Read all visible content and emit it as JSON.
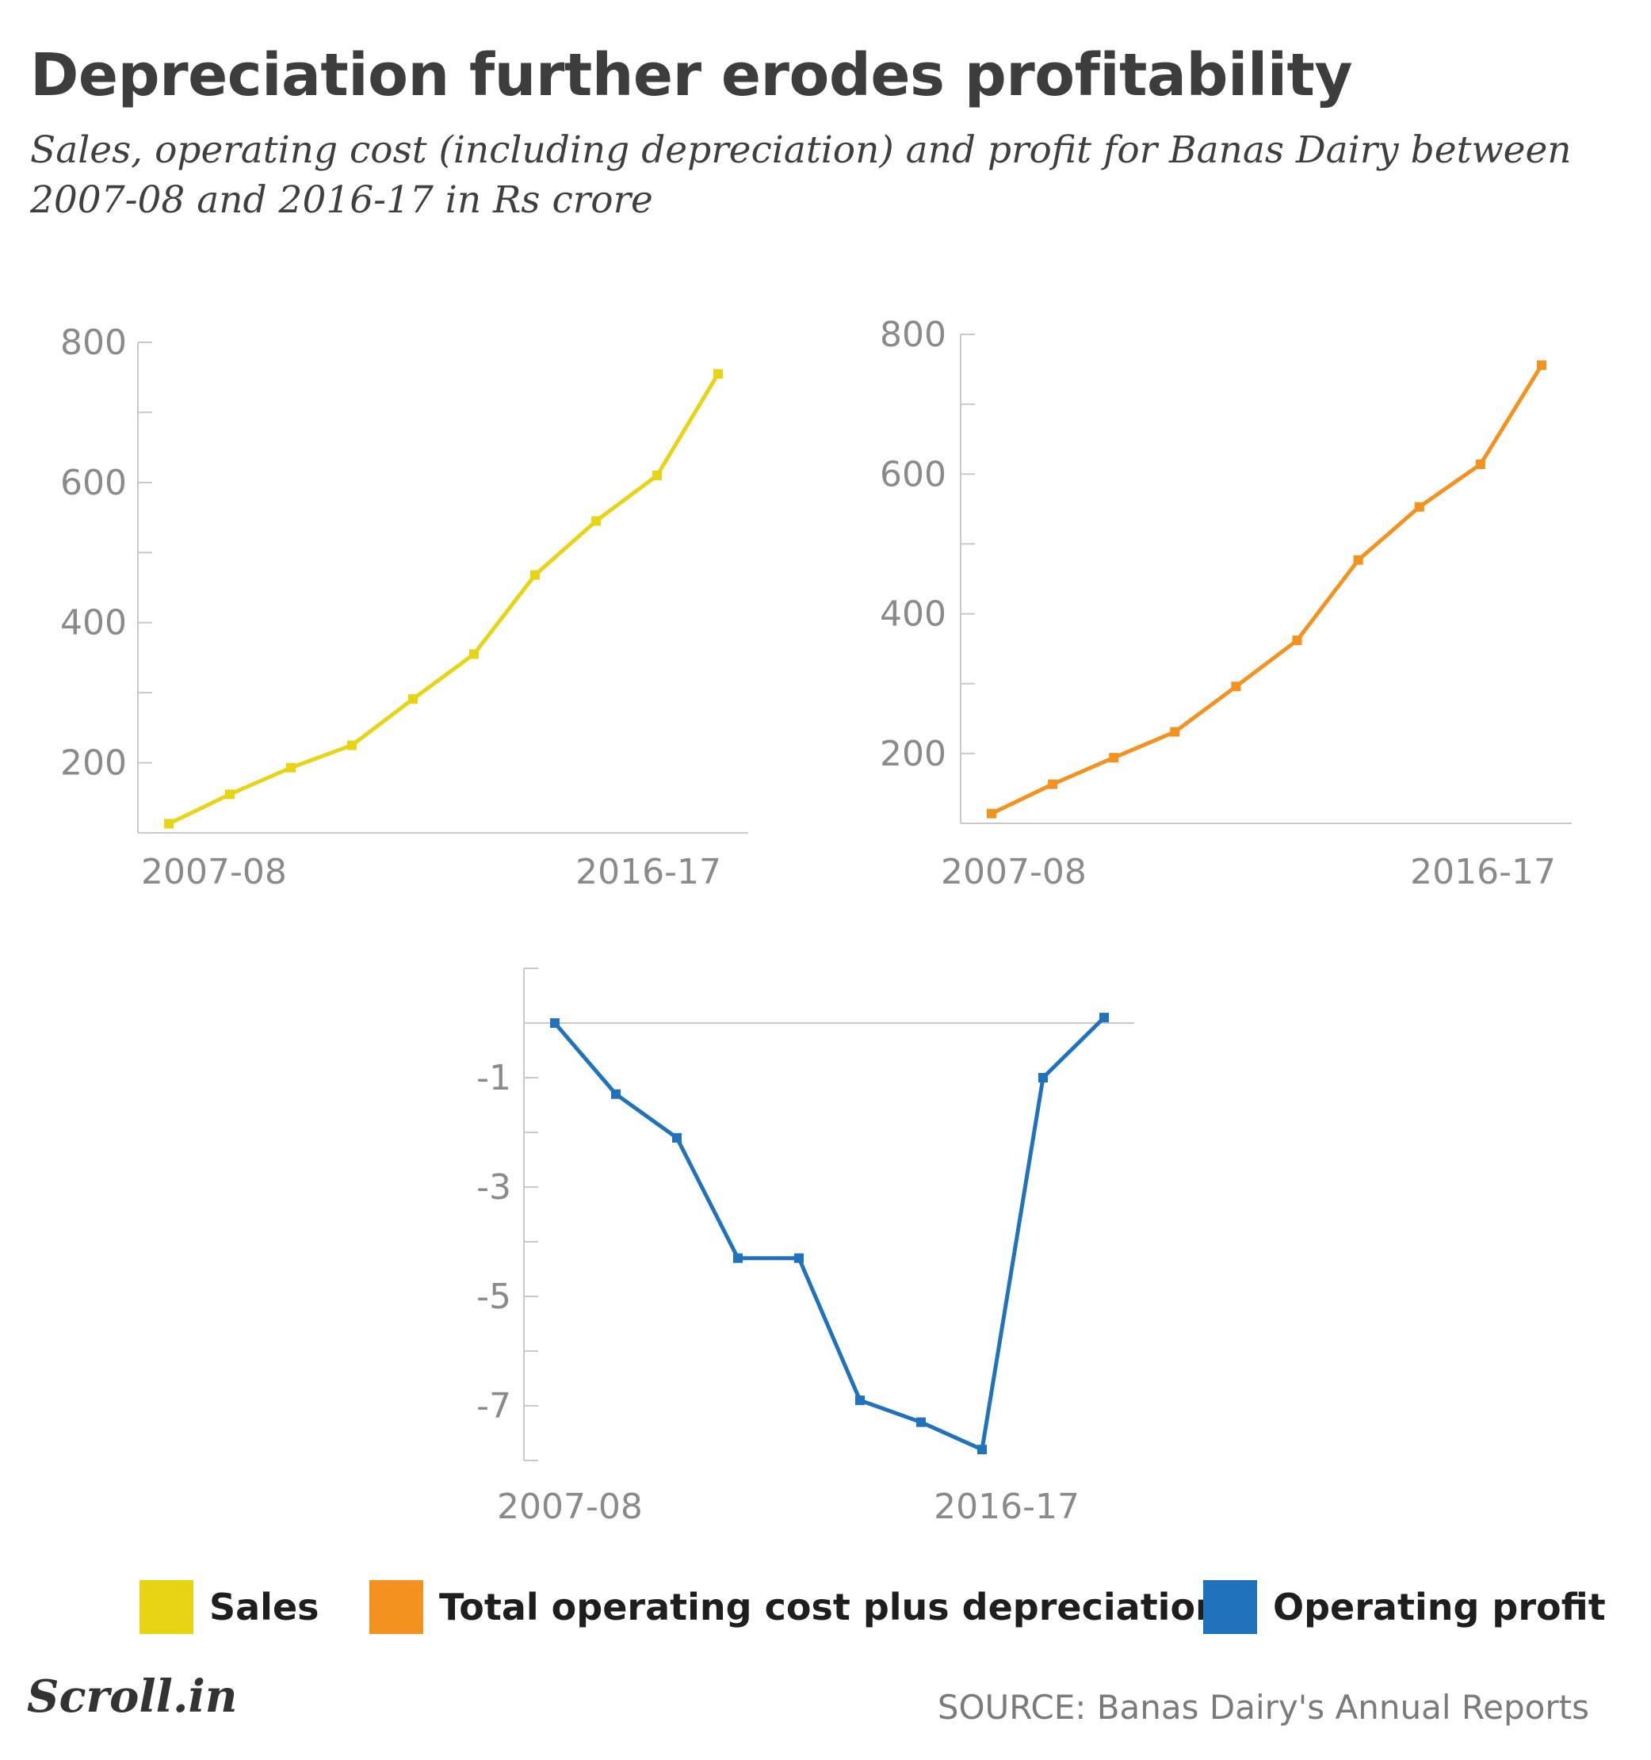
{
  "title": "Depreciation further erodes profitability",
  "subtitle": "Sales, operating cost (including depreciation) and profit for Banas Dairy between 2007-08 and 2016-17 in Rs crore",
  "legend": [
    {
      "label": "Sales",
      "color": "#e8d414"
    },
    {
      "label": "Total operating cost plus depreciation",
      "color": "#f4921f"
    },
    {
      "label": "Operating profit",
      "color": "#1f72bb"
    }
  ],
  "logo": "Scroll.in",
  "source": "SOURCE: Banas Dairy's Annual Reports",
  "chart_data": [
    {
      "type": "line",
      "series_label": "Sales",
      "color": "#e8d414",
      "x": [
        "2007-08",
        "2008-09",
        "2009-10",
        "2010-11",
        "2011-12",
        "2012-13",
        "2013-14",
        "2014-15",
        "2015-16",
        "2016-17"
      ],
      "x_tick_labels": [
        "2007-08",
        "2016-17"
      ],
      "values": [
        113,
        155,
        193,
        225,
        291,
        355,
        468,
        545,
        610,
        755
      ],
      "ylim": [
        100,
        800
      ],
      "y_ticks": [
        200,
        400,
        600,
        800
      ],
      "grid": false
    },
    {
      "type": "line",
      "series_label": "Total operating cost plus depreciation",
      "color": "#f4921f",
      "x": [
        "2007-08",
        "2008-09",
        "2009-10",
        "2010-11",
        "2011-12",
        "2012-13",
        "2013-14",
        "2014-15",
        "2015-16",
        "2016-17"
      ],
      "x_tick_labels": [
        "2007-08",
        "2016-17"
      ],
      "values": [
        114,
        156,
        194,
        231,
        296,
        362,
        477,
        553,
        614,
        756
      ],
      "ylim": [
        100,
        800
      ],
      "y_ticks": [
        200,
        400,
        600,
        800
      ],
      "grid": false
    },
    {
      "type": "line",
      "series_label": "Operating profit",
      "color": "#1f72bb",
      "x": [
        "2007-08",
        "2008-09",
        "2009-10",
        "2010-11",
        "2011-12",
        "2012-13",
        "2013-14",
        "2014-15",
        "2015-16",
        "2016-17"
      ],
      "x_tick_labels": [
        "2007-08",
        "2016-17"
      ],
      "values": [
        0.0,
        -1.3,
        -2.1,
        -4.3,
        -4.3,
        -6.9,
        -7.3,
        -7.8,
        -1.0,
        0.1
      ],
      "ylim": [
        -8,
        1
      ],
      "y_ticks": [
        -1,
        -3,
        -5,
        -7
      ],
      "zero_line": true,
      "grid": false
    }
  ]
}
